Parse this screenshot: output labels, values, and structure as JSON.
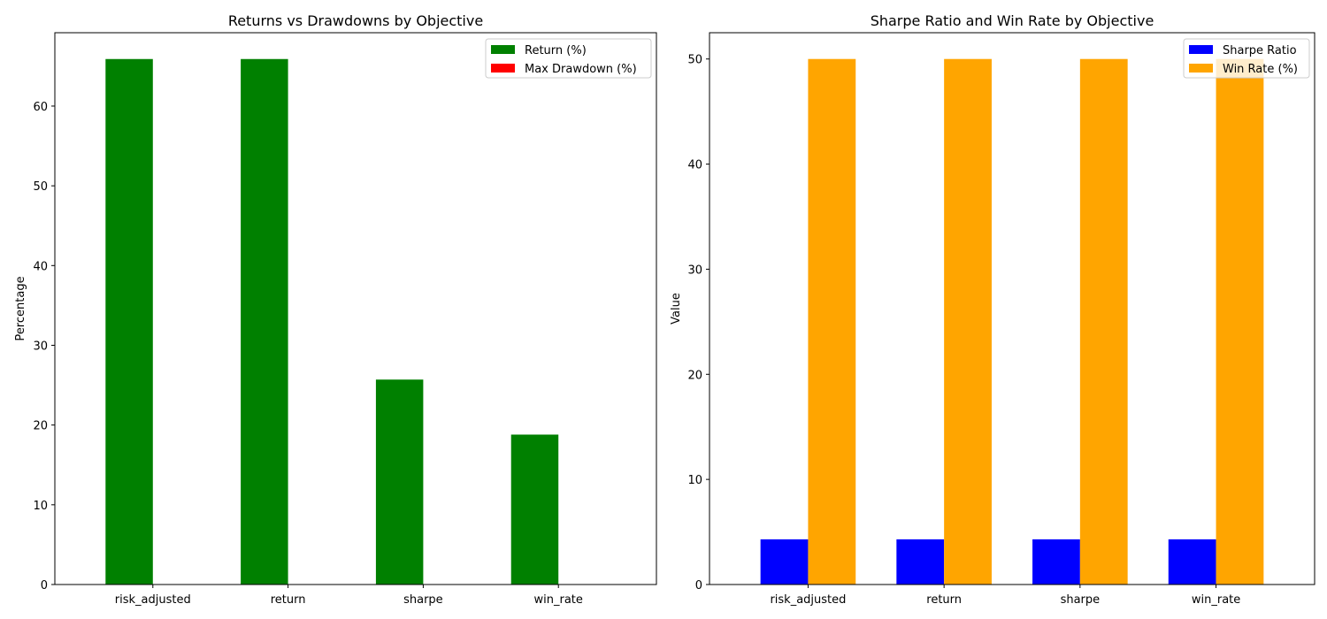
{
  "chart_data": [
    {
      "type": "bar",
      "title": "Returns vs Drawdowns by Objective",
      "xlabel": "",
      "ylabel": "Percentage",
      "categories": [
        "risk_adjusted",
        "return",
        "sharpe",
        "win_rate"
      ],
      "series": [
        {
          "name": "Return (%)",
          "color": "#008000",
          "values": [
            65.9,
            65.9,
            25.7,
            18.8
          ]
        },
        {
          "name": "Max Drawdown (%)",
          "color": "#ff0000",
          "values": [
            0,
            0,
            0,
            0
          ]
        }
      ],
      "ylim": [
        0,
        69.2
      ],
      "yticks": [
        0,
        10,
        20,
        30,
        40,
        50,
        60
      ],
      "grid": false,
      "legend": "top-right"
    },
    {
      "type": "bar",
      "title": "Sharpe Ratio and Win Rate by Objective",
      "xlabel": "",
      "ylabel": "Value",
      "categories": [
        "risk_adjusted",
        "return",
        "sharpe",
        "win_rate"
      ],
      "series": [
        {
          "name": "Sharpe Ratio",
          "color": "#0000ff",
          "values": [
            4.3,
            4.3,
            4.3,
            4.3
          ]
        },
        {
          "name": "Win Rate (%)",
          "color": "#ffa500",
          "values": [
            50,
            50,
            50,
            50
          ]
        }
      ],
      "ylim": [
        0,
        52.5
      ],
      "yticks": [
        0,
        10,
        20,
        30,
        40,
        50
      ],
      "grid": false,
      "legend": "top-right"
    }
  ]
}
